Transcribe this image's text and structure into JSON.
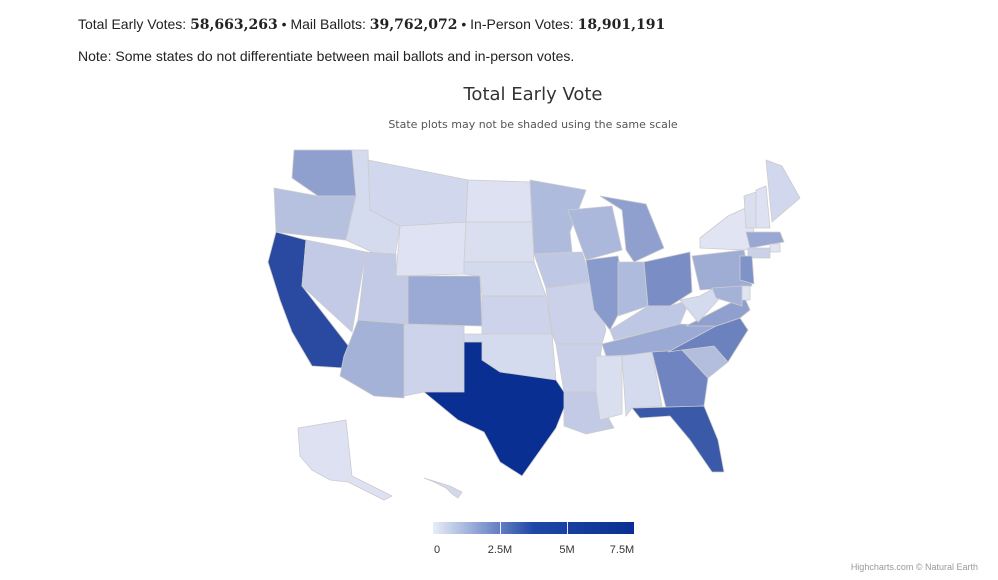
{
  "totals": {
    "early_label": "Total Early Votes:",
    "early_value": "58,663,263",
    "mail_label": "Mail Ballots:",
    "mail_value": "39,762,072",
    "inperson_label": "In-Person Votes:",
    "inperson_value": "18,901,191",
    "separator": "•"
  },
  "note": "Note: Some states do not differentiate between mail ballots and in-person votes.",
  "chart_data": {
    "type": "map",
    "title": "Total Early Vote",
    "subtitle": "State plots may not be shaded using the same scale",
    "color_axis": {
      "min": 0,
      "max": 7500000,
      "min_color": "#eceef8",
      "max_color": "#0a2f93",
      "tick_labels": [
        "0",
        "2.5M",
        "5M",
        "7.5M"
      ],
      "tick_values": [
        0,
        2500000,
        5000000,
        7500000
      ]
    },
    "states": [
      {
        "code": "WA",
        "value": 2300000
      },
      {
        "code": "OR",
        "value": 1100000
      },
      {
        "code": "CA",
        "value": 6100000
      },
      {
        "code": "NV",
        "value": 800000
      },
      {
        "code": "ID",
        "value": 350000
      },
      {
        "code": "MT",
        "value": 450000
      },
      {
        "code": "WY",
        "value": 180000
      },
      {
        "code": "UT",
        "value": 800000
      },
      {
        "code": "AZ",
        "value": 1600000
      },
      {
        "code": "CO",
        "value": 1900000
      },
      {
        "code": "NM",
        "value": 550000
      },
      {
        "code": "ND",
        "value": 200000
      },
      {
        "code": "SD",
        "value": 250000
      },
      {
        "code": "NE",
        "value": 380000
      },
      {
        "code": "KS",
        "value": 550000
      },
      {
        "code": "OK",
        "value": 350000
      },
      {
        "code": "TX",
        "value": 7500000
      },
      {
        "code": "MN",
        "value": 1300000
      },
      {
        "code": "IA",
        "value": 900000
      },
      {
        "code": "MO",
        "value": 600000
      },
      {
        "code": "AR",
        "value": 600000
      },
      {
        "code": "LA",
        "value": 800000
      },
      {
        "code": "WI",
        "value": 1400000
      },
      {
        "code": "IL",
        "value": 2500000
      },
      {
        "code": "MI",
        "value": 2300000
      },
      {
        "code": "IN",
        "value": 1300000
      },
      {
        "code": "OH",
        "value": 3000000
      },
      {
        "code": "KY",
        "value": 900000
      },
      {
        "code": "TN",
        "value": 1900000
      },
      {
        "code": "MS",
        "value": 250000
      },
      {
        "code": "AL",
        "value": 350000
      },
      {
        "code": "GA",
        "value": 3400000
      },
      {
        "code": "FL",
        "value": 5400000
      },
      {
        "code": "SC",
        "value": 1200000
      },
      {
        "code": "NC",
        "value": 3500000
      },
      {
        "code": "VA",
        "value": 2300000
      },
      {
        "code": "WV",
        "value": 350000
      },
      {
        "code": "PA",
        "value": 1800000
      },
      {
        "code": "NY",
        "value": 150000
      },
      {
        "code": "VT",
        "value": 250000
      },
      {
        "code": "NH",
        "value": 200000
      },
      {
        "code": "ME",
        "value": 450000
      },
      {
        "code": "MA",
        "value": 2000000
      },
      {
        "code": "RI",
        "value": 150000
      },
      {
        "code": "CT",
        "value": 600000
      },
      {
        "code": "NJ",
        "value": 2800000
      },
      {
        "code": "DE",
        "value": 150000
      },
      {
        "code": "MD",
        "value": 1600000
      },
      {
        "code": "AK",
        "value": 200000
      },
      {
        "code": "HI",
        "value": 400000
      }
    ]
  },
  "credits": "Highcharts.com © Natural Earth"
}
